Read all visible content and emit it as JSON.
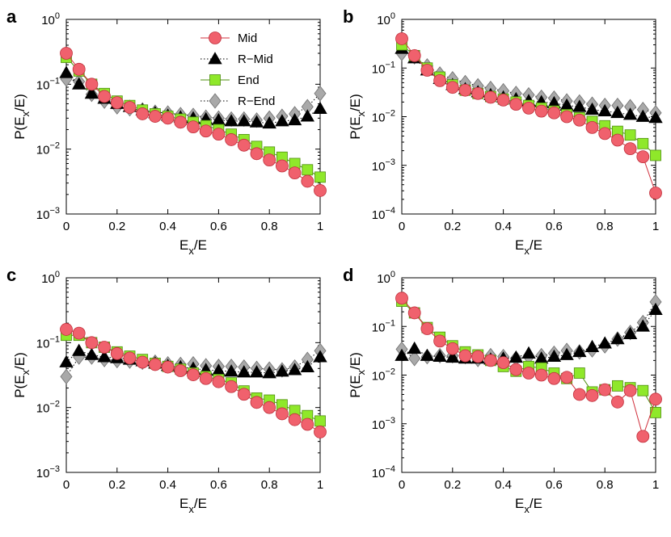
{
  "figure": {
    "legend": {
      "placement": "top-right of panel a",
      "entries": [
        {
          "name": "Mid",
          "marker": "circle",
          "color": "#f0616d",
          "line": "solid"
        },
        {
          "name": "R−Mid",
          "marker": "triangle",
          "color": "#000000",
          "line": "dotted"
        },
        {
          "name": "End",
          "marker": "square",
          "color": "#8fe82a",
          "line": "solid"
        },
        {
          "name": "R−End",
          "marker": "diamond",
          "color": "#a9a9a9",
          "line": "dotted"
        }
      ]
    }
  },
  "chart_data": [
    {
      "panel": "a",
      "type": "line",
      "yscale": "log",
      "xlim": [
        0,
        1
      ],
      "ylim": [
        0.001,
        1
      ],
      "xlabel": "E_x/E",
      "ylabel": "P(E_x/E)",
      "x": [
        0,
        0.05,
        0.1,
        0.15,
        0.2,
        0.25,
        0.3,
        0.35,
        0.4,
        0.45,
        0.5,
        0.55,
        0.6,
        0.65,
        0.7,
        0.75,
        0.8,
        0.85,
        0.9,
        0.95,
        1
      ],
      "series": [
        {
          "name": "Mid",
          "values": [
            0.3,
            0.17,
            0.1,
            0.065,
            0.052,
            0.044,
            0.035,
            0.032,
            0.03,
            0.026,
            0.022,
            0.019,
            0.017,
            0.014,
            0.0115,
            0.0085,
            0.0068,
            0.0055,
            0.0043,
            0.0032,
            0.0023
          ]
        },
        {
          "name": "R−Mid",
          "values": [
            0.15,
            0.1,
            0.072,
            0.06,
            0.05,
            0.045,
            0.04,
            0.036,
            0.033,
            0.031,
            0.03,
            0.029,
            0.028,
            0.027,
            0.027,
            0.026,
            0.025,
            0.027,
            0.028,
            0.032,
            0.042
          ]
        },
        {
          "name": "End",
          "values": [
            0.26,
            0.16,
            0.1,
            0.072,
            0.055,
            0.047,
            0.04,
            0.035,
            0.032,
            0.029,
            0.026,
            0.023,
            0.02,
            0.017,
            0.014,
            0.011,
            0.009,
            0.0075,
            0.006,
            0.0048,
            0.0037
          ]
        },
        {
          "name": "R−End",
          "values": [
            0.12,
            0.11,
            0.07,
            0.055,
            0.045,
            0.042,
            0.04,
            0.037,
            0.036,
            0.034,
            0.033,
            0.031,
            0.03,
            0.029,
            0.029,
            0.028,
            0.03,
            0.032,
            0.035,
            0.045,
            0.072
          ]
        }
      ]
    },
    {
      "panel": "b",
      "type": "line",
      "yscale": "log",
      "xlim": [
        0,
        1
      ],
      "ylim": [
        0.0001,
        1
      ],
      "xlabel": "E_x/E",
      "ylabel": "P(E_x/E)",
      "x": [
        0,
        0.05,
        0.1,
        0.15,
        0.2,
        0.25,
        0.3,
        0.35,
        0.4,
        0.45,
        0.5,
        0.55,
        0.6,
        0.65,
        0.7,
        0.75,
        0.8,
        0.85,
        0.9,
        0.95,
        1
      ],
      "series": [
        {
          "name": "Mid",
          "values": [
            0.4,
            0.18,
            0.09,
            0.055,
            0.04,
            0.035,
            0.03,
            0.025,
            0.022,
            0.018,
            0.015,
            0.013,
            0.012,
            0.01,
            0.0085,
            0.006,
            0.0045,
            0.0033,
            0.0022,
            0.0015,
            0.00027
          ]
        },
        {
          "name": "R−Mid",
          "values": [
            0.25,
            0.16,
            0.09,
            0.06,
            0.045,
            0.037,
            0.032,
            0.028,
            0.025,
            0.023,
            0.021,
            0.02,
            0.019,
            0.017,
            0.016,
            0.014,
            0.013,
            0.012,
            0.011,
            0.01,
            0.0095
          ]
        },
        {
          "name": "End",
          "values": [
            0.3,
            0.18,
            0.1,
            0.065,
            0.045,
            0.035,
            0.03,
            0.026,
            0.023,
            0.02,
            0.017,
            0.015,
            0.013,
            0.011,
            0.0095,
            0.008,
            0.0065,
            0.005,
            0.0042,
            0.0028,
            0.0016
          ]
        },
        {
          "name": "R−End",
          "values": [
            0.2,
            0.17,
            0.11,
            0.075,
            0.06,
            0.05,
            0.043,
            0.038,
            0.034,
            0.03,
            0.028,
            0.025,
            0.024,
            0.021,
            0.02,
            0.018,
            0.017,
            0.017,
            0.016,
            0.014,
            0.012
          ]
        }
      ]
    },
    {
      "panel": "c",
      "type": "line",
      "yscale": "log",
      "xlim": [
        0,
        1
      ],
      "ylim": [
        0.001,
        1
      ],
      "xlabel": "E_x/E",
      "ylabel": "P(E_x/E)",
      "x": [
        0,
        0.05,
        0.1,
        0.15,
        0.2,
        0.25,
        0.3,
        0.35,
        0.4,
        0.45,
        0.5,
        0.55,
        0.6,
        0.65,
        0.7,
        0.75,
        0.8,
        0.85,
        0.9,
        0.95,
        1
      ],
      "series": [
        {
          "name": "Mid",
          "values": [
            0.16,
            0.14,
            0.1,
            0.085,
            0.068,
            0.058,
            0.05,
            0.046,
            0.042,
            0.037,
            0.032,
            0.028,
            0.025,
            0.021,
            0.016,
            0.012,
            0.01,
            0.008,
            0.0065,
            0.0055,
            0.0042
          ]
        },
        {
          "name": "R−Mid",
          "values": [
            0.05,
            0.075,
            0.065,
            0.06,
            0.058,
            0.055,
            0.052,
            0.048,
            0.044,
            0.042,
            0.04,
            0.038,
            0.037,
            0.036,
            0.035,
            0.035,
            0.034,
            0.036,
            0.038,
            0.042,
            0.06
          ]
        },
        {
          "name": "End",
          "values": [
            0.13,
            0.13,
            0.1,
            0.085,
            0.072,
            0.062,
            0.055,
            0.048,
            0.043,
            0.039,
            0.034,
            0.03,
            0.027,
            0.024,
            0.018,
            0.014,
            0.013,
            0.011,
            0.009,
            0.0075,
            0.0062
          ]
        },
        {
          "name": "R−End",
          "values": [
            0.03,
            0.06,
            0.06,
            0.055,
            0.053,
            0.052,
            0.05,
            0.05,
            0.047,
            0.046,
            0.047,
            0.044,
            0.043,
            0.043,
            0.042,
            0.04,
            0.039,
            0.038,
            0.042,
            0.055,
            0.075
          ]
        }
      ]
    },
    {
      "panel": "d",
      "type": "line",
      "yscale": "log",
      "xlim": [
        0,
        1
      ],
      "ylim": [
        0.0001,
        1
      ],
      "xlabel": "E_x/E",
      "ylabel": "P(E_x/E)",
      "x": [
        0,
        0.05,
        0.1,
        0.15,
        0.2,
        0.25,
        0.3,
        0.35,
        0.4,
        0.45,
        0.5,
        0.55,
        0.6,
        0.65,
        0.7,
        0.75,
        0.8,
        0.85,
        0.9,
        0.95,
        1
      ],
      "series": [
        {
          "name": "Mid",
          "values": [
            0.38,
            0.19,
            0.09,
            0.05,
            0.035,
            0.025,
            0.024,
            0.02,
            0.018,
            0.013,
            0.011,
            0.01,
            0.0085,
            0.009,
            0.004,
            0.0038,
            0.005,
            0.0028,
            0.0048,
            0.00055,
            0.0032
          ]
        },
        {
          "name": "R−Mid",
          "values": [
            0.025,
            0.035,
            0.025,
            0.024,
            0.023,
            0.022,
            0.022,
            0.021,
            0.022,
            0.023,
            0.028,
            0.022,
            0.024,
            0.026,
            0.03,
            0.038,
            0.045,
            0.055,
            0.07,
            0.1,
            0.22
          ]
        },
        {
          "name": "End",
          "values": [
            0.33,
            0.19,
            0.095,
            0.06,
            0.04,
            0.03,
            0.026,
            0.02,
            0.015,
            0.012,
            0.015,
            0.014,
            0.011,
            0.0085,
            0.011,
            0.0045,
            0.005,
            0.006,
            0.0055,
            0.0048,
            0.0017
          ]
        },
        {
          "name": "R−End",
          "values": [
            0.034,
            0.022,
            0.024,
            0.025,
            0.025,
            0.024,
            0.021,
            0.025,
            0.024,
            0.022,
            0.024,
            0.025,
            0.028,
            0.032,
            0.03,
            0.033,
            0.04,
            0.055,
            0.075,
            0.12,
            0.32
          ]
        }
      ]
    }
  ]
}
